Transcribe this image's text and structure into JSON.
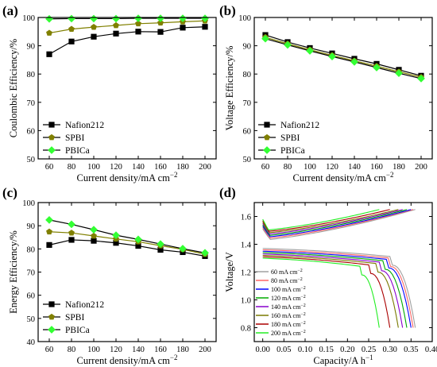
{
  "chart_data": [
    {
      "panel": "(a)",
      "type": "line",
      "xlabel": "Current density/mA cm",
      "xlabel_sup": "−2",
      "ylabel": "Coulombic Efficiency/%",
      "xlim": [
        50,
        210
      ],
      "ylim": [
        50,
        100
      ],
      "x_ticks": [
        60,
        80,
        100,
        120,
        140,
        160,
        180,
        200
      ],
      "y_ticks": [
        50,
        60,
        70,
        80,
        90,
        100
      ],
      "legend_position": "bottom-left",
      "x": [
        60,
        80,
        100,
        120,
        140,
        160,
        180,
        200
      ],
      "series": [
        {
          "name": "Nafion212",
          "marker": "square",
          "color": "#000000",
          "values": [
            87.0,
            91.5,
            93.2,
            94.3,
            95.0,
            94.9,
            96.4,
            96.7
          ]
        },
        {
          "name": "SPBI",
          "marker": "pentagon",
          "color": "#808000",
          "values": [
            94.5,
            95.9,
            96.6,
            97.2,
            97.8,
            98.1,
            98.5,
            98.8
          ]
        },
        {
          "name": "PBICa",
          "marker": "diamond",
          "color": "#33ff33",
          "values": [
            99.5,
            99.6,
            99.6,
            99.6,
            99.7,
            99.7,
            99.7,
            99.7
          ]
        }
      ]
    },
    {
      "panel": "(b)",
      "type": "line",
      "xlabel": "Current density/mA cm",
      "xlabel_sup": "−2",
      "ylabel": "Voltage Efficiency/%",
      "xlim": [
        50,
        210
      ],
      "ylim": [
        50,
        100
      ],
      "x_ticks": [
        60,
        80,
        100,
        120,
        140,
        160,
        180,
        200
      ],
      "y_ticks": [
        50,
        60,
        70,
        80,
        90,
        100
      ],
      "legend_position": "bottom-left",
      "x": [
        60,
        80,
        100,
        120,
        140,
        160,
        180,
        200
      ],
      "series": [
        {
          "name": "Nafion212",
          "marker": "square",
          "color": "#000000",
          "values": [
            93.8,
            91.3,
            89.2,
            87.3,
            85.4,
            83.6,
            81.5,
            79.4
          ]
        },
        {
          "name": "SPBI",
          "marker": "pentagon",
          "color": "#808000",
          "values": [
            93.0,
            90.7,
            88.6,
            86.6,
            84.7,
            82.8,
            80.8,
            78.9
          ]
        },
        {
          "name": "PBICa",
          "marker": "diamond",
          "color": "#33ff33",
          "values": [
            92.5,
            90.3,
            88.2,
            86.2,
            84.3,
            82.3,
            80.3,
            78.4
          ]
        }
      ]
    },
    {
      "panel": "(c)",
      "type": "line",
      "xlabel": "Current density/mA cm",
      "xlabel_sup": "−2",
      "ylabel": "Energy Efficiency/%",
      "xlim": [
        50,
        210
      ],
      "ylim": [
        40,
        100
      ],
      "x_ticks": [
        60,
        80,
        100,
        120,
        140,
        160,
        180,
        200
      ],
      "y_ticks": [
        40,
        50,
        60,
        70,
        80,
        90,
        100
      ],
      "legend_position": "bottom-left",
      "x": [
        60,
        80,
        100,
        120,
        140,
        160,
        180,
        200
      ],
      "series": [
        {
          "name": "Nafion212",
          "marker": "square",
          "color": "#000000",
          "values": [
            81.7,
            83.9,
            83.5,
            82.6,
            81.3,
            79.6,
            78.6,
            76.9
          ]
        },
        {
          "name": "SPBI",
          "marker": "pentagon",
          "color": "#808000",
          "values": [
            87.4,
            86.9,
            85.6,
            84.3,
            83.1,
            81.4,
            79.8,
            77.7
          ]
        },
        {
          "name": "PBICa",
          "marker": "diamond",
          "color": "#33ff33",
          "values": [
            92.5,
            90.6,
            88.3,
            85.9,
            84.1,
            82.1,
            80.1,
            78.3
          ]
        }
      ]
    },
    {
      "panel": "(d)",
      "type": "line",
      "xlabel": "Capacity/A h",
      "xlabel_sup": "−1",
      "ylabel": "Voltage/V",
      "xlim": [
        -0.02,
        0.4
      ],
      "ylim": [
        0.7,
        1.7
      ],
      "x_ticks": [
        "0.00",
        "0.05",
        "0.10",
        "0.15",
        "0.20",
        "0.25",
        "0.30",
        "0.35",
        "0.40"
      ],
      "y_ticks": [
        "0.8",
        "1.0",
        "1.2",
        "1.4",
        "1.6"
      ],
      "legend_position": "bottom-left",
      "legend_unit": "mA cm",
      "legend_unit_sup": "−2",
      "series": [
        {
          "name": "60",
          "color": "#a0a0a0",
          "charge_start": 1.43,
          "charge_end": 1.65,
          "discharge_start": 1.37,
          "discharge_end_v": 0.8,
          "capacity": 0.36
        },
        {
          "name": "80",
          "color": "#ff6666",
          "charge_start": 1.44,
          "charge_end": 1.65,
          "discharge_start": 1.36,
          "discharge_end_v": 0.8,
          "capacity": 0.355
        },
        {
          "name": "100",
          "color": "#0000ff",
          "charge_start": 1.45,
          "charge_end": 1.65,
          "discharge_start": 1.35,
          "discharge_end_v": 0.8,
          "capacity": 0.35
        },
        {
          "name": "120",
          "color": "#00aa00",
          "charge_start": 1.46,
          "charge_end": 1.65,
          "discharge_start": 1.34,
          "discharge_end_v": 0.8,
          "capacity": 0.34
        },
        {
          "name": "140",
          "color": "#8800cc",
          "charge_start": 1.47,
          "charge_end": 1.65,
          "discharge_start": 1.33,
          "discharge_end_v": 0.8,
          "capacity": 0.33
        },
        {
          "name": "160",
          "color": "#7a7a00",
          "charge_start": 1.48,
          "charge_end": 1.65,
          "discharge_start": 1.32,
          "discharge_end_v": 0.8,
          "capacity": 0.32
        },
        {
          "name": "180",
          "color": "#aa0000",
          "charge_start": 1.49,
          "charge_end": 1.65,
          "discharge_start": 1.31,
          "discharge_end_v": 0.8,
          "capacity": 0.3
        },
        {
          "name": "200",
          "color": "#22ee22",
          "charge_start": 1.5,
          "charge_end": 1.65,
          "discharge_start": 1.3,
          "discharge_end_v": 0.8,
          "capacity": 0.275
        }
      ]
    }
  ]
}
